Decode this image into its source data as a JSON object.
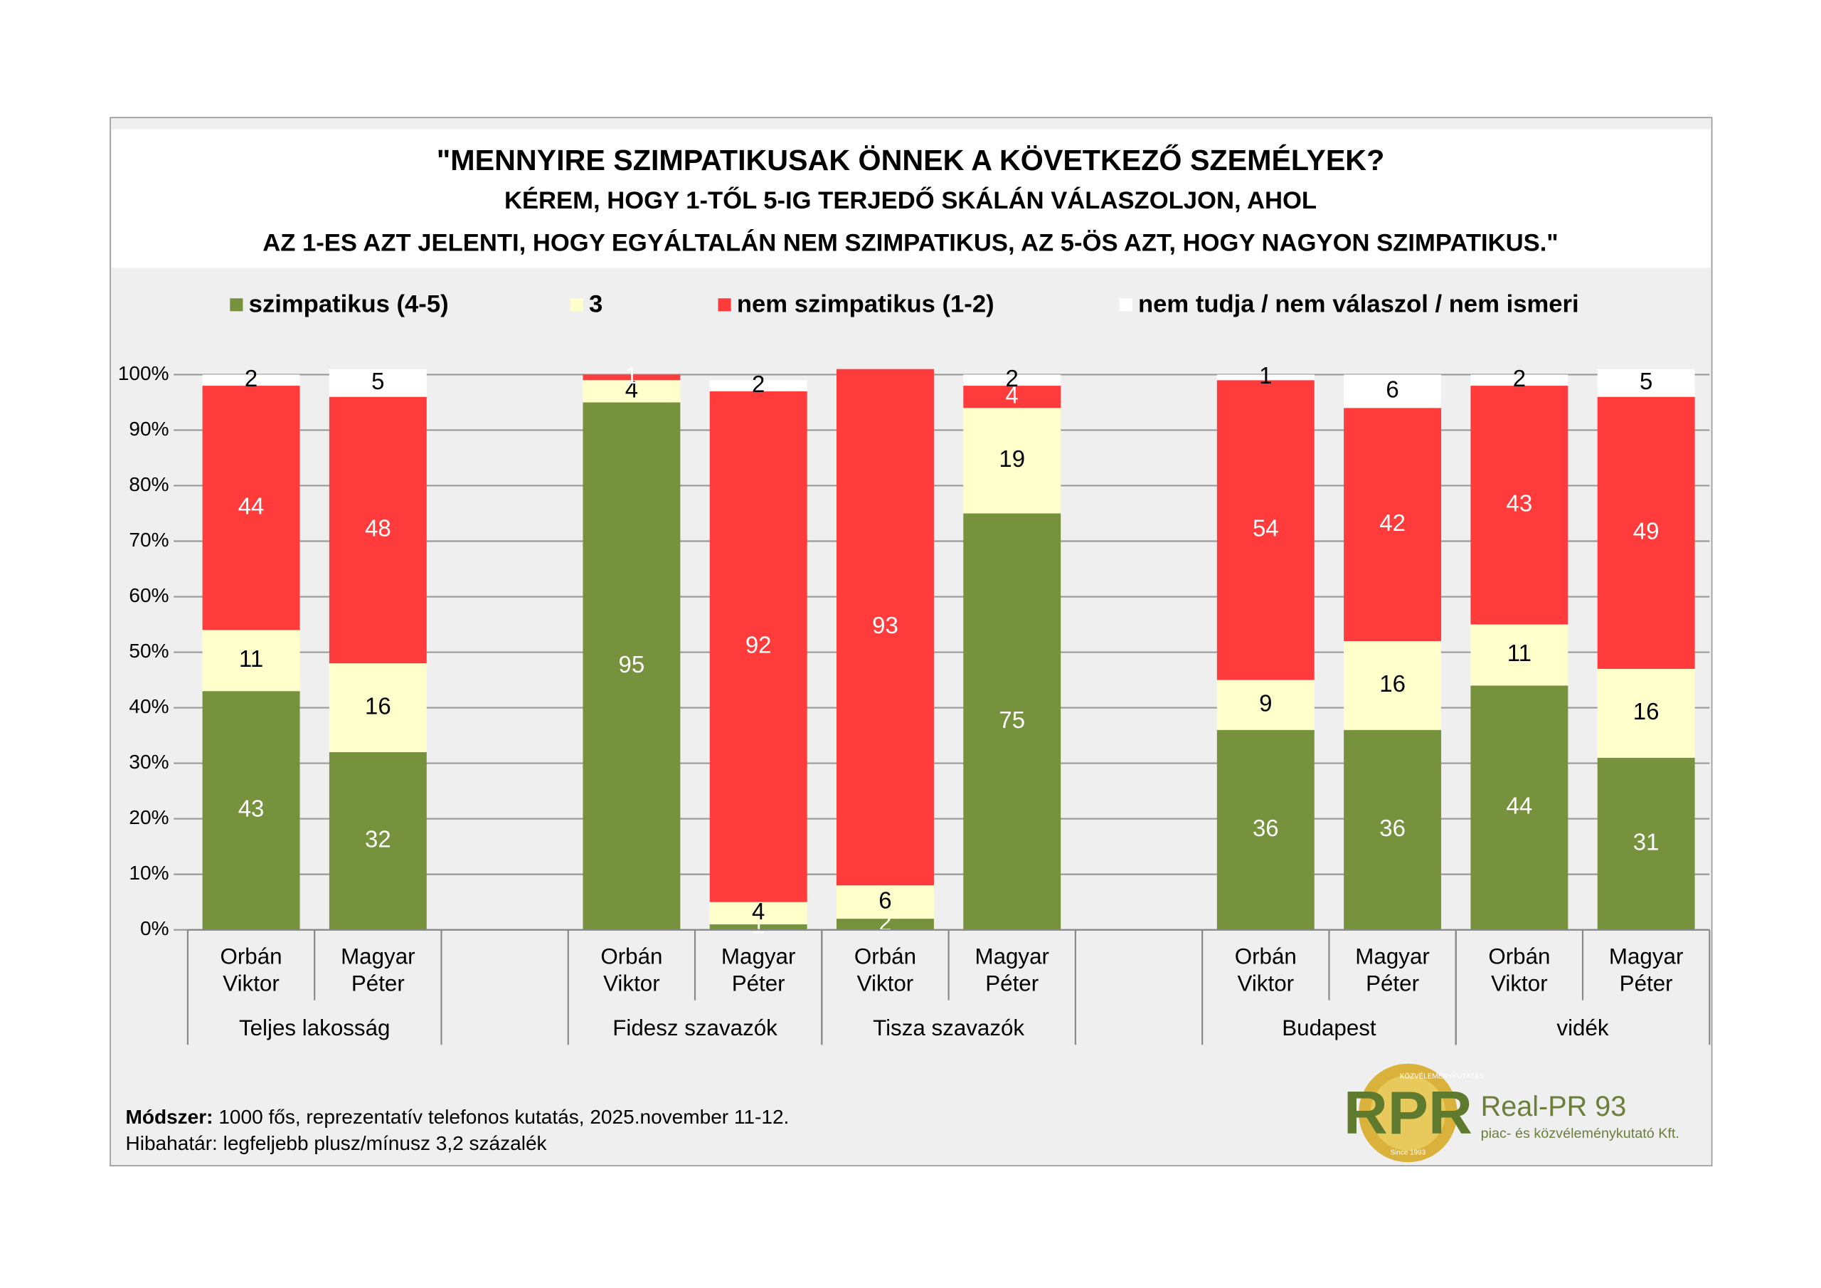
{
  "chart_data": {
    "type": "stacked_bar",
    "title": "\"MENNYIRE SZIMPATIKUSAK ÖNNEK A KÖVETKEZŐ SZEMÉLYEK?",
    "subtitle": [
      "KÉREM, HOGY 1-TŐL 5-IG TERJEDŐ SKÁLÁN VÁLASZOLJON, AHOL",
      "AZ 1-ES AZT JELENTI, HOGY EGYÁLTALÁN NEM SZIMPATIKUS, AZ 5-ÖS AZT, HOGY NAGYON SZIMPATIKUS.\""
    ],
    "categories": [
      "Orbán Viktor",
      "Magyar Péter",
      null,
      "Orbán Viktor",
      "Magyar Péter",
      "Orbán Viktor",
      "Magyar Péter",
      null,
      "Orbán Viktor",
      "Magyar Péter",
      "Orbán Viktor",
      "Magyar Péter"
    ],
    "groups": [
      "Teljes lakosság",
      "Fidesz szavazók",
      "Tisza szavazók",
      "Budapest",
      "vidék"
    ],
    "series": [
      {
        "name": "szimpatikus (4-5)",
        "color": "#76923c",
        "values": [
          43,
          32,
          null,
          95,
          1,
          2,
          75,
          null,
          36,
          36,
          44,
          31
        ]
      },
      {
        "name": "3",
        "color": "#ffffcc",
        "values": [
          11,
          16,
          null,
          4,
          4,
          6,
          19,
          null,
          9,
          16,
          11,
          16
        ]
      },
      {
        "name": "nem szimpatikus (1-2)",
        "color": "#ff3b3b",
        "values": [
          44,
          48,
          null,
          1,
          92,
          93,
          4,
          null,
          54,
          42,
          43,
          49
        ]
      },
      {
        "name": "nem tudja / nem válaszol / nem ismeri",
        "color": "#ffffff",
        "values": [
          2,
          5,
          null,
          null,
          2,
          null,
          2,
          null,
          1,
          6,
          2,
          5
        ]
      }
    ],
    "ylim": [
      0,
      100
    ],
    "yticks": [
      {
        "value": 0,
        "label": "0%"
      },
      {
        "value": 10,
        "label": "10%"
      },
      {
        "value": 20,
        "label": "20%"
      },
      {
        "value": 30,
        "label": "30%"
      },
      {
        "value": 40,
        "label": "40%"
      },
      {
        "value": 50,
        "label": "50%"
      },
      {
        "value": 60,
        "label": "60%"
      },
      {
        "value": 70,
        "label": "70%"
      },
      {
        "value": 80,
        "label": "80%"
      },
      {
        "value": 90,
        "label": "90%"
      },
      {
        "value": 100,
        "label": "100%"
      }
    ],
    "grid": true,
    "legend": "top",
    "note": {
      "method_label": "Módszer:",
      "method": " 1000 fős, reprezentatív telefonos kutatás, 2025.november 11-12.",
      "error": "Hibahatár: legfeljebb plusz/mínusz 3,2 százalék"
    },
    "logo": {
      "mark": "RPR",
      "ring_top": "KÖZVÉLEMÉNYKUTATÁS",
      "ring_bottom": "Since 1993",
      "name": "Real-PR 93",
      "tagline": "piac- és közvéleménykutató Kft."
    }
  }
}
